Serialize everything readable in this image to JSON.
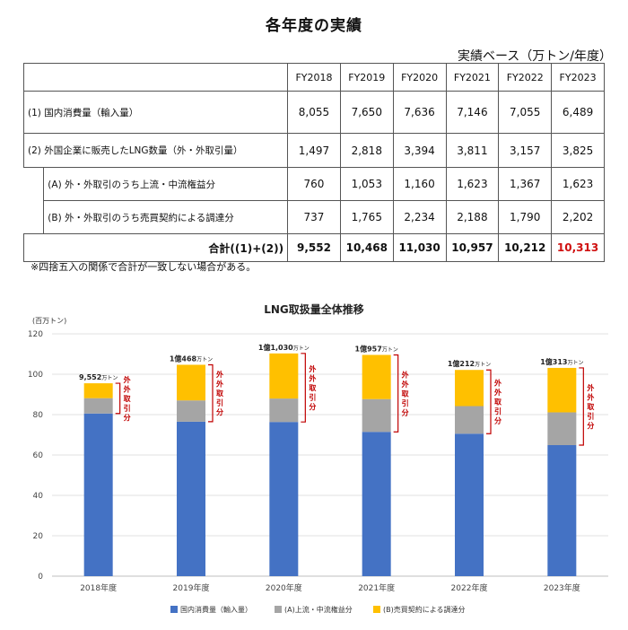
{
  "page_title": "各年度の実績",
  "unit_note": "実績ベース（万トン/年度）",
  "table": {
    "headers": [
      "FY2018",
      "FY2019",
      "FY2020",
      "FY2021",
      "FY2022",
      "FY2023"
    ],
    "row1_label": "(1) 国内消費量（輸入量）",
    "row1": [
      "8,055",
      "7,650",
      "7,636",
      "7,146",
      "7,055",
      "6,489"
    ],
    "row2_label": "(2) 外国企業に販売したLNG数量（外・外取引量）",
    "row2": [
      "1,497",
      "2,818",
      "3,394",
      "3,811",
      "3,157",
      "3,825"
    ],
    "rowA_label": "(A) 外・外取引のうち上流・中流権益分",
    "rowA": [
      "760",
      "1,053",
      "1,160",
      "1,623",
      "1,367",
      "1,623"
    ],
    "rowB_label": "(B) 外・外取引のうち売買契約による調達分",
    "rowB": [
      "737",
      "1,765",
      "2,234",
      "2,188",
      "1,790",
      "2,202"
    ],
    "total_label": "合計((1)+(2))",
    "total": [
      "9,552",
      "10,468",
      "11,030",
      "10,957",
      "10,212",
      "10,313"
    ]
  },
  "footnote": "※四捨五入の関係で合計が一致しない場合がある。",
  "chart_data": {
    "type": "bar",
    "stacked": true,
    "title": "LNG取扱量全体推移",
    "ylabel": "(百万トン)",
    "ylim": [
      0,
      120
    ],
    "yticks": [
      0,
      20,
      40,
      60,
      80,
      100,
      120
    ],
    "categories": [
      "2018年度",
      "2019年度",
      "2020年度",
      "2021年度",
      "2022年度",
      "2023年度"
    ],
    "series": [
      {
        "name": "国内消費量（輸入量）",
        "color": "#4472c4",
        "values": [
          80.55,
          76.5,
          76.36,
          71.46,
          70.55,
          64.89
        ]
      },
      {
        "name": "(A)上流・中流権益分",
        "color": "#a5a5a5",
        "values": [
          7.6,
          10.53,
          11.6,
          16.23,
          13.67,
          16.23
        ]
      },
      {
        "name": "(B)売買契約による調達分",
        "color": "#ffc000",
        "values": [
          7.37,
          17.65,
          22.34,
          21.88,
          17.9,
          22.02
        ]
      }
    ],
    "total_labels": [
      {
        "main": "9,552",
        "unit": "万トン"
      },
      {
        "main": "1億468",
        "unit": "万トン"
      },
      {
        "main": "1億1,030",
        "unit": "万トン"
      },
      {
        "main": "1億957",
        "unit": "万トン"
      },
      {
        "main": "1億212",
        "unit": "万トン"
      },
      {
        "main": "1億313",
        "unit": "万トン"
      }
    ],
    "bracket_label": "外外取引分",
    "bracket_color": "#c00000",
    "grid": true,
    "legend_position": "bottom"
  }
}
